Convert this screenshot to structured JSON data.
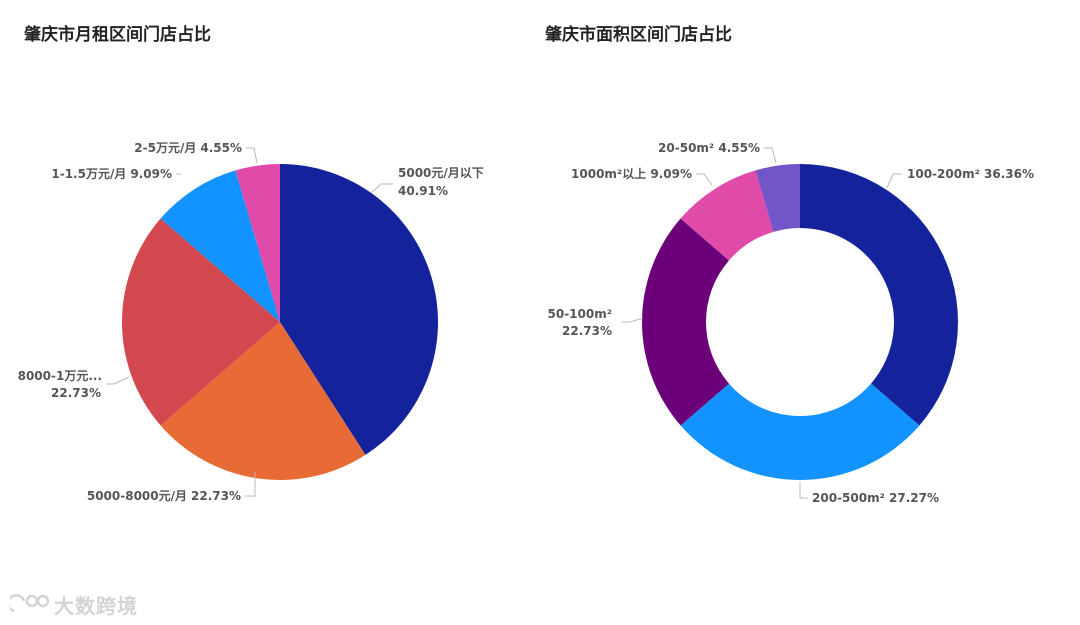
{
  "chart_data": [
    {
      "type": "pie",
      "title": "肇庆市月租区间门店占比",
      "slices": [
        {
          "label": "5000元/月以下",
          "value": 40.91,
          "value_label": "40.91%",
          "color": "#14239b"
        },
        {
          "label": "5000-8000元/月",
          "value": 22.73,
          "value_label": "22.73%",
          "color": "#e86b37"
        },
        {
          "label": "8000-1万元...",
          "value": 22.73,
          "value_label": "22.73%",
          "color": "#d3474f"
        },
        {
          "label": "1-1.5万元/月",
          "value": 9.09,
          "value_label": "9.09%",
          "color": "#1393ff"
        },
        {
          "label": "2-5万元/月",
          "value": 4.55,
          "value_label": "4.55%",
          "color": "#e04aa8"
        }
      ]
    },
    {
      "type": "pie",
      "donut": true,
      "title": "肇庆市面积区间门店占比",
      "slices": [
        {
          "label": "100-200m² 36.36%",
          "value": 36.36,
          "color": "#14239b"
        },
        {
          "label": "200-500m² 27.27%",
          "value": 27.27,
          "color": "#1393ff"
        },
        {
          "label": "50-100m²",
          "value": 22.73,
          "value_label": "22.73%",
          "color": "#6b007a"
        },
        {
          "label": "1000m²以上 9.09%",
          "value": 9.09,
          "color": "#e04aa8"
        },
        {
          "label": "20-50m² 4.55%",
          "value": 4.55,
          "color": "#7255c8"
        }
      ]
    }
  ],
  "watermark": {
    "text": "大数跨境",
    "logo_icon": "watermark-logo-icon"
  }
}
